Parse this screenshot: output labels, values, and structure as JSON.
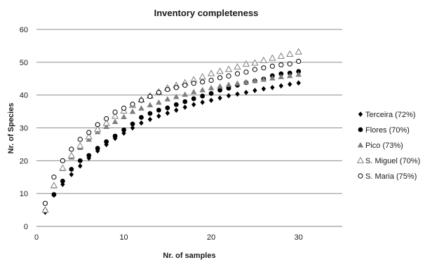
{
  "chart_data": {
    "type": "scatter",
    "title": "Inventory completeness",
    "xlabel": "Nr. of samples",
    "ylabel": "Nr.  of  Species",
    "xlim": [
      0,
      35
    ],
    "ylim": [
      0,
      60
    ],
    "xticks": [
      0,
      10,
      20,
      30
    ],
    "yticks": [
      0,
      10,
      20,
      30,
      40,
      50,
      60
    ],
    "grid": "horizontal",
    "legend_position": "right",
    "series": [
      {
        "name": "Terceira  (72%)",
        "marker": "diamond-filled",
        "color": "#000000",
        "x": [
          1,
          2,
          3,
          4,
          5,
          6,
          7,
          8,
          9,
          10,
          11,
          12,
          13,
          14,
          15,
          16,
          17,
          18,
          19,
          20,
          21,
          22,
          23,
          24,
          25,
          26,
          27,
          28,
          29,
          30
        ],
        "y": [
          4.3,
          9.5,
          12.8,
          15.8,
          18.4,
          20.8,
          23.0,
          24.9,
          26.8,
          28.4,
          30.0,
          31.5,
          32.6,
          33.6,
          34.5,
          35.4,
          36.3,
          37.1,
          37.8,
          38.4,
          39.1,
          39.8,
          40.3,
          40.8,
          41.4,
          41.9,
          42.3,
          42.8,
          43.3,
          43.7
        ]
      },
      {
        "name": "Flores (70%)",
        "marker": "circle-filled",
        "color": "#000000",
        "x": [
          1,
          2,
          3,
          4,
          5,
          6,
          7,
          8,
          9,
          10,
          11,
          12,
          13,
          14,
          15,
          16,
          17,
          18,
          19,
          20,
          21,
          22,
          23,
          24,
          25,
          26,
          27,
          28,
          29,
          30
        ],
        "y": [
          4.8,
          9.7,
          13.8,
          17.4,
          20.0,
          21.6,
          23.8,
          25.8,
          27.5,
          29.4,
          31.2,
          33.2,
          34.4,
          35.4,
          36.1,
          37.1,
          38.0,
          38.9,
          39.7,
          40.5,
          41.5,
          42.1,
          43.0,
          43.8,
          44.3,
          44.9,
          45.9,
          46.5,
          46.7,
          47.2
        ]
      },
      {
        "name": "Pico (73%)",
        "marker": "triangle-filled",
        "color": "#7f7f7f",
        "x": [
          1,
          2,
          3,
          4,
          5,
          6,
          7,
          8,
          9,
          10,
          11,
          12,
          13,
          14,
          15,
          16,
          17,
          18,
          19,
          20,
          21,
          22,
          23,
          24,
          25,
          26,
          27,
          28,
          29,
          30
        ],
        "y": [
          5.2,
          12.3,
          17.6,
          21.1,
          24.0,
          26.5,
          28.8,
          30.4,
          31.9,
          33.4,
          35.0,
          36.0,
          37.0,
          37.8,
          38.8,
          39.5,
          40.2,
          41.0,
          41.6,
          42.2,
          42.7,
          43.2,
          43.6,
          44.0,
          44.4,
          44.8,
          45.2,
          45.6,
          45.9,
          46.3
        ]
      },
      {
        "name": "S. Miguel (70%)",
        "marker": "triangle-open",
        "color": "#7f7f7f",
        "x": [
          1,
          2,
          3,
          4,
          5,
          6,
          7,
          8,
          9,
          10,
          11,
          12,
          13,
          14,
          15,
          16,
          17,
          18,
          19,
          20,
          21,
          22,
          23,
          24,
          25,
          26,
          27,
          28,
          29,
          30
        ],
        "y": [
          5.0,
          12.5,
          17.8,
          21.6,
          24.6,
          27.4,
          29.6,
          31.5,
          33.6,
          35.2,
          36.9,
          38.6,
          39.8,
          41.0,
          42.2,
          43.0,
          43.8,
          44.7,
          45.6,
          46.6,
          47.3,
          47.9,
          48.6,
          49.5,
          49.8,
          50.6,
          51.3,
          51.9,
          52.5,
          53.2
        ]
      },
      {
        "name": "S. Maria (75%)",
        "marker": "circle-open",
        "color": "#000000",
        "x": [
          1,
          2,
          3,
          4,
          5,
          6,
          7,
          8,
          9,
          10,
          11,
          12,
          13,
          14,
          15,
          16,
          17,
          18,
          19,
          20,
          21,
          22,
          23,
          24,
          25,
          26,
          27,
          28,
          29,
          30
        ],
        "y": [
          7.0,
          15.0,
          20.0,
          23.5,
          26.5,
          28.6,
          31.0,
          32.8,
          34.8,
          36.0,
          37.2,
          38.4,
          39.6,
          40.8,
          41.7,
          42.3,
          43.0,
          43.6,
          44.0,
          44.5,
          45.3,
          45.8,
          46.5,
          47.0,
          47.8,
          48.3,
          48.8,
          49.2,
          49.5,
          50.3
        ]
      }
    ]
  }
}
